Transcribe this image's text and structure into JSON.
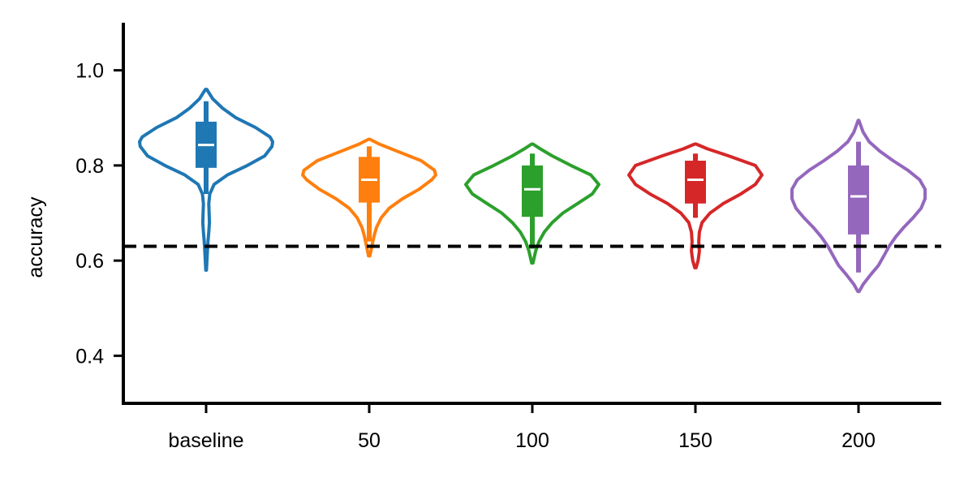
{
  "chart_data": {
    "type": "violin",
    "title": "",
    "xlabel": "",
    "ylabel": "accuracy",
    "ylim": [
      0.3,
      1.1
    ],
    "yticks": [
      {
        "value": 0.4,
        "label": "0.4"
      },
      {
        "value": 0.6,
        "label": "0.6"
      },
      {
        "value": 0.8,
        "label": "0.8"
      },
      {
        "value": 1.0,
        "label": "1.0"
      }
    ],
    "categories": [
      "baseline",
      "50",
      "100",
      "150",
      "200"
    ],
    "reference_line": {
      "y": 0.63,
      "style": "dashed",
      "color": "#000000"
    },
    "grid": false,
    "series": [
      {
        "color": "#1f77b4",
        "min": 0.58,
        "max": 0.96,
        "q1": 0.795,
        "median": 0.843,
        "q3": 0.892,
        "whisker_low": 0.74,
        "whisker_high": 0.935,
        "density": [
          [
            0.58,
            0.005
          ],
          [
            0.6,
            0.012
          ],
          [
            0.62,
            0.02
          ],
          [
            0.64,
            0.028
          ],
          [
            0.66,
            0.04
          ],
          [
            0.68,
            0.05
          ],
          [
            0.7,
            0.045
          ],
          [
            0.72,
            0.04
          ],
          [
            0.74,
            0.055
          ],
          [
            0.76,
            0.12
          ],
          [
            0.78,
            0.32
          ],
          [
            0.8,
            0.62
          ],
          [
            0.82,
            0.88
          ],
          [
            0.84,
            0.99
          ],
          [
            0.85,
            1.0
          ],
          [
            0.86,
            0.96
          ],
          [
            0.88,
            0.74
          ],
          [
            0.9,
            0.45
          ],
          [
            0.92,
            0.25
          ],
          [
            0.94,
            0.1
          ],
          [
            0.96,
            0.01
          ]
        ]
      },
      {
        "color": "#ff7f0e",
        "min": 0.61,
        "max": 0.855,
        "q1": 0.722,
        "median": 0.77,
        "q3": 0.818,
        "whisker_low": 0.64,
        "whisker_high": 0.84,
        "density": [
          [
            0.61,
            0.01
          ],
          [
            0.63,
            0.04
          ],
          [
            0.65,
            0.07
          ],
          [
            0.67,
            0.11
          ],
          [
            0.69,
            0.18
          ],
          [
            0.71,
            0.3
          ],
          [
            0.73,
            0.5
          ],
          [
            0.75,
            0.75
          ],
          [
            0.77,
            0.94
          ],
          [
            0.78,
            1.0
          ],
          [
            0.79,
            0.98
          ],
          [
            0.81,
            0.78
          ],
          [
            0.83,
            0.42
          ],
          [
            0.845,
            0.15
          ],
          [
            0.855,
            0.01
          ]
        ]
      },
      {
        "color": "#2ca02c",
        "min": 0.595,
        "max": 0.845,
        "q1": 0.692,
        "median": 0.75,
        "q3": 0.8,
        "whisker_low": 0.625,
        "whisker_high": 0.825,
        "density": [
          [
            0.595,
            0.01
          ],
          [
            0.62,
            0.05
          ],
          [
            0.64,
            0.1
          ],
          [
            0.66,
            0.18
          ],
          [
            0.68,
            0.3
          ],
          [
            0.7,
            0.46
          ],
          [
            0.72,
            0.68
          ],
          [
            0.74,
            0.9
          ],
          [
            0.76,
            1.0
          ],
          [
            0.78,
            0.88
          ],
          [
            0.8,
            0.58
          ],
          [
            0.82,
            0.3
          ],
          [
            0.835,
            0.12
          ],
          [
            0.845,
            0.01
          ]
        ]
      },
      {
        "color": "#d62728",
        "min": 0.585,
        "max": 0.845,
        "q1": 0.72,
        "median": 0.77,
        "q3": 0.81,
        "whisker_low": 0.69,
        "whisker_high": 0.825,
        "density": [
          [
            0.585,
            0.01
          ],
          [
            0.6,
            0.04
          ],
          [
            0.62,
            0.06
          ],
          [
            0.64,
            0.05
          ],
          [
            0.66,
            0.06
          ],
          [
            0.68,
            0.1
          ],
          [
            0.7,
            0.22
          ],
          [
            0.72,
            0.42
          ],
          [
            0.74,
            0.68
          ],
          [
            0.76,
            0.9
          ],
          [
            0.78,
            1.0
          ],
          [
            0.8,
            0.9
          ],
          [
            0.82,
            0.5
          ],
          [
            0.835,
            0.18
          ],
          [
            0.845,
            0.01
          ]
        ]
      },
      {
        "color": "#9467bd",
        "min": 0.535,
        "max": 0.895,
        "q1": 0.655,
        "median": 0.735,
        "q3": 0.8,
        "whisker_low": 0.575,
        "whisker_high": 0.85,
        "density": [
          [
            0.535,
            0.01
          ],
          [
            0.55,
            0.07
          ],
          [
            0.57,
            0.18
          ],
          [
            0.59,
            0.3
          ],
          [
            0.61,
            0.38
          ],
          [
            0.63,
            0.46
          ],
          [
            0.65,
            0.56
          ],
          [
            0.67,
            0.68
          ],
          [
            0.69,
            0.82
          ],
          [
            0.71,
            0.94
          ],
          [
            0.73,
            1.0
          ],
          [
            0.75,
            1.0
          ],
          [
            0.77,
            0.92
          ],
          [
            0.79,
            0.74
          ],
          [
            0.81,
            0.52
          ],
          [
            0.83,
            0.32
          ],
          [
            0.85,
            0.16
          ],
          [
            0.87,
            0.07
          ],
          [
            0.885,
            0.03
          ],
          [
            0.895,
            0.005
          ]
        ]
      }
    ]
  }
}
